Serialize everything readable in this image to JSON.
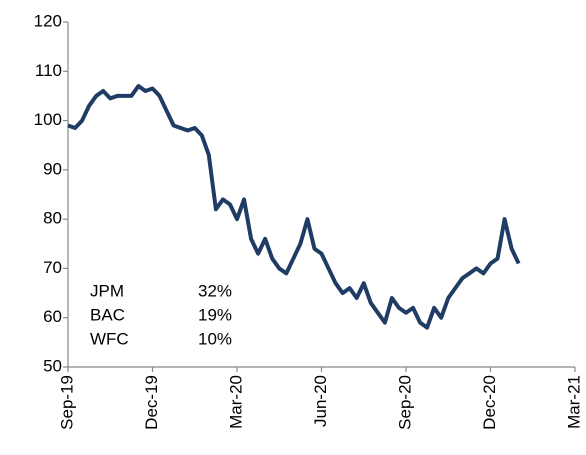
{
  "chart_data": {
    "type": "line",
    "x": [
      0,
      0.25,
      0.5,
      0.75,
      1,
      1.25,
      1.5,
      1.75,
      2,
      2.25,
      2.5,
      2.75,
      3,
      3.25,
      3.5,
      3.75,
      4,
      4.25,
      4.5,
      4.75,
      5,
      5.25,
      5.5,
      5.75,
      6,
      6.25,
      6.5,
      6.75,
      7,
      7.25,
      7.5,
      7.75,
      8,
      8.25,
      8.5,
      8.75,
      9,
      9.25,
      9.5,
      9.75,
      10,
      10.25,
      10.5,
      10.75,
      11,
      11.25,
      11.5,
      11.75,
      12,
      12.25,
      12.5,
      12.75,
      13,
      13.25,
      13.5,
      13.75,
      14,
      14.25,
      14.5,
      14.75,
      15,
      15.25,
      15.5,
      15.75,
      16
    ],
    "series": [
      {
        "color": "#1f3c64",
        "values": [
          99,
          98.5,
          100,
          103,
          105,
          106,
          104.5,
          105,
          105,
          105,
          107,
          106,
          106.5,
          105,
          102,
          99,
          98.5,
          98,
          98.5,
          97,
          93,
          82,
          84,
          83,
          80,
          84,
          76,
          73,
          76,
          72,
          70,
          69,
          72,
          75,
          80,
          74,
          73,
          70,
          67,
          65,
          66,
          64,
          67,
          63,
          61,
          59,
          64,
          62,
          61,
          62,
          59,
          58,
          62,
          60,
          64,
          66,
          68,
          69,
          70,
          69,
          71,
          72,
          80,
          74,
          71
        ]
      }
    ],
    "xlim": [
      0,
      18
    ],
    "xticks": [
      {
        "value": 0,
        "label": "Sep-19"
      },
      {
        "value": 3,
        "label": "Dec-19"
      },
      {
        "value": 6,
        "label": "Mar-20"
      },
      {
        "value": 9,
        "label": "Jun-20"
      },
      {
        "value": 12,
        "label": "Sep-20"
      },
      {
        "value": 15,
        "label": "Dec-20"
      },
      {
        "value": 18,
        "label": "Mar-21"
      }
    ],
    "ylim": [
      50,
      120
    ],
    "yticks": [
      50,
      60,
      70,
      80,
      90,
      100,
      110,
      120
    ],
    "grid": false,
    "annotations": [
      [
        "JPM",
        "32%"
      ],
      [
        "BAC",
        "19%"
      ],
      [
        "WFC",
        "10%"
      ]
    ]
  }
}
